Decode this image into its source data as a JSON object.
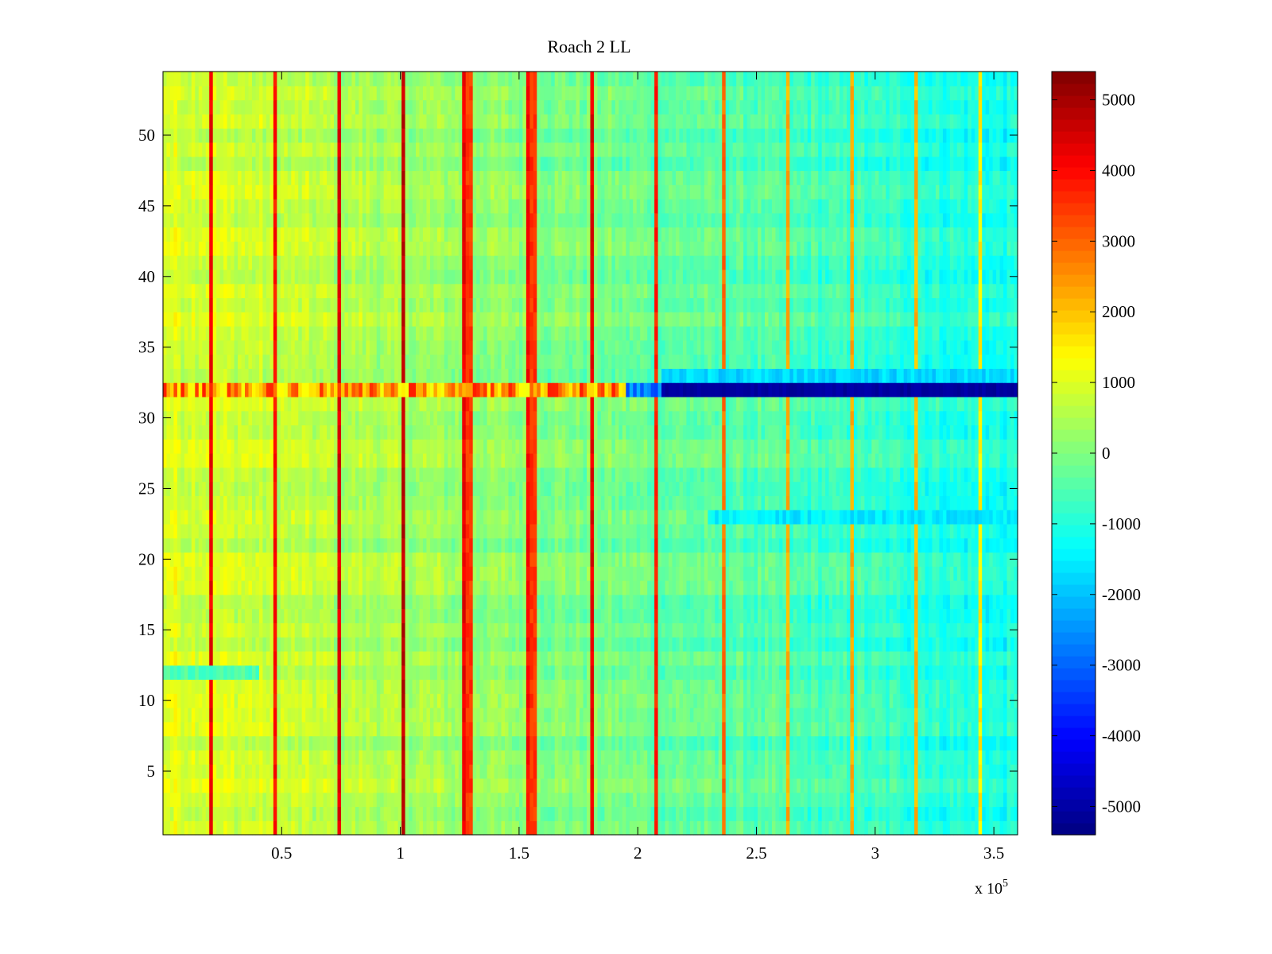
{
  "chart_data": {
    "type": "heatmap",
    "title": "Roach 2 LL",
    "xlabel": "",
    "ylabel": "",
    "x_multiplier_label": {
      "base": "x 10",
      "exponent": "5"
    },
    "xlim": [
      0,
      3.6
    ],
    "ylim": [
      0.5,
      54.5
    ],
    "x_ticks": [
      0.5,
      1,
      1.5,
      2,
      2.5,
      3,
      3.5
    ],
    "x_tick_labels": [
      "0.5",
      "1",
      "1.5",
      "2",
      "2.5",
      "3",
      "3.5"
    ],
    "y_ticks": [
      5,
      10,
      15,
      20,
      25,
      30,
      35,
      40,
      45,
      50
    ],
    "y_tick_labels": [
      "5",
      "10",
      "15",
      "20",
      "25",
      "30",
      "35",
      "40",
      "45",
      "50"
    ],
    "n_rows": 54,
    "n_cols": 240,
    "colormap": "jet",
    "colorbar": {
      "range": [
        -5400,
        5400
      ],
      "ticks": [
        5000,
        4000,
        3000,
        2000,
        1000,
        0,
        -1000,
        -2000,
        -3000,
        -4000,
        -5000
      ],
      "tick_labels": [
        "5000",
        "4000",
        "3000",
        "2000",
        "1000",
        "0",
        "-1000",
        "-2000",
        "-3000",
        "-4000",
        "-5000"
      ]
    },
    "value_trend": {
      "x_start": 0,
      "start_value": 1000,
      "x_end": 3.6,
      "end_value": -1200
    },
    "vertical_hot_lines": [
      {
        "x": 0.2,
        "value": 4500
      },
      {
        "x": 0.47,
        "value": 4200
      },
      {
        "x": 0.74,
        "value": 4700
      },
      {
        "x": 1.01,
        "value": 5000
      },
      {
        "x": 1.27,
        "value": 4500
      },
      {
        "x": 1.29,
        "value": 3800
      },
      {
        "x": 1.54,
        "value": 4300
      },
      {
        "x": 1.56,
        "value": 3800
      },
      {
        "x": 1.81,
        "value": 4600
      },
      {
        "x": 2.08,
        "value": 4000
      },
      {
        "x": 2.36,
        "value": 3200
      },
      {
        "x": 2.63,
        "value": 2500
      },
      {
        "x": 2.9,
        "value": 2500
      },
      {
        "x": 3.17,
        "value": 2400
      },
      {
        "x": 3.44,
        "value": 1800
      }
    ],
    "anomalous_rows": [
      {
        "row": 32,
        "description": "hot (1000-4000) for x < 1.95, strongly negative (~-5200) for x > 2.1"
      },
      {
        "row": 33,
        "description": "negative (~-2000) for x > 2.1"
      },
      {
        "row": 23,
        "description": "sparse dark spikes and negative values (~-1800) for x > 2.3"
      },
      {
        "row": 12,
        "description": "negative (~-1000) for x < 0.4"
      }
    ]
  }
}
